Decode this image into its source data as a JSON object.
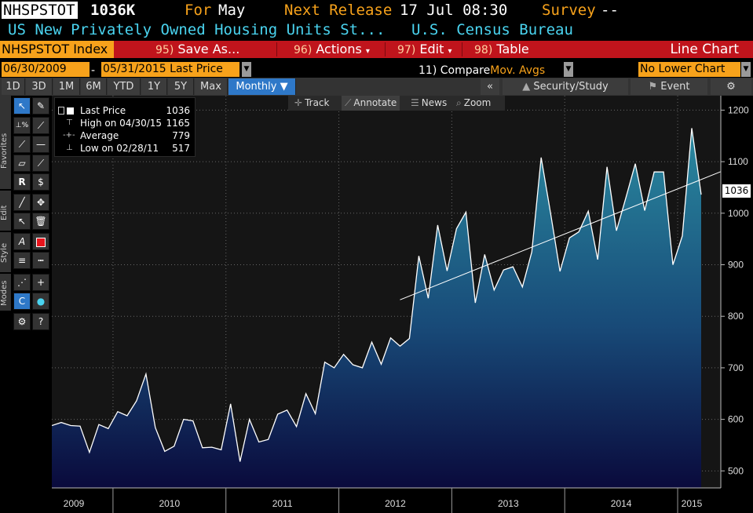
{
  "header": {
    "ticker": "NHSPSTOT",
    "price": "1036K",
    "for_label": "For",
    "for_value": "May",
    "next_release_label": "Next Release",
    "next_release_value": "17 Jul 08:30",
    "survey_label": "Survey",
    "survey_value": "--",
    "description": "US New Privately Owned Housing Units St...",
    "source": "U.S. Census Bureau"
  },
  "menubar": {
    "index_label": "NHSPSTOT Index",
    "save_num": "95)",
    "save_label": "Save As...",
    "actions_num": "96)",
    "actions_label": "Actions",
    "edit_num": "97)",
    "edit_label": "Edit",
    "table_num": "98)",
    "table_label": "Table",
    "chart_type": "Line Chart"
  },
  "daterow": {
    "start_date": "06/30/2009",
    "dash": "-",
    "end_date": "05/31/2015",
    "price_field": "Last Price",
    "compare_num": "11)",
    "compare_label": "Compare",
    "compare_value": "Mov. Avgs",
    "lower_chart": "No Lower Chart"
  },
  "periods": {
    "items": [
      "1D",
      "3D",
      "1M",
      "6M",
      "YTD",
      "1Y",
      "5Y",
      "Max"
    ],
    "frequency": "Monthly",
    "collapse": "«",
    "security_study": "Security/Study",
    "event": "Event",
    "settings_icon": "gear-icon"
  },
  "toolbar_sections": {
    "favorites": "Favorites",
    "edit": "Edit",
    "style": "Style",
    "modes": "Modes"
  },
  "floating_toolbar": {
    "track": "Track",
    "annotate": "Annotate",
    "news": "News",
    "zoom": "Zoom"
  },
  "legend": {
    "last_label": "Last Price",
    "last_value": "1036",
    "high_label": "High on 04/30/15",
    "high_value": "1165",
    "avg_label": "Average",
    "avg_value": "779",
    "low_label": "Low on 02/28/11",
    "low_value": "517"
  },
  "colors": {
    "orange": "#f7a21b",
    "cyan": "#4ad4f0",
    "menu_red": "#c0141c",
    "active_blue": "#2e78c8",
    "area_top": "#2a8aa0",
    "area_bottom": "#0a0a3c"
  },
  "chart_data": {
    "type": "area",
    "series": [
      {
        "name": "Last Price",
        "values": [
          588,
          594,
          588,
          587,
          536,
          590,
          582,
          615,
          607,
          636,
          688,
          584,
          538,
          548,
          600,
          597,
          545,
          546,
          541,
          630,
          518,
          600,
          556,
          561,
          610,
          618,
          586,
          650,
          611,
          711,
          700,
          726,
          706,
          700,
          750,
          707,
          758,
          742,
          757,
          917,
          835,
          977,
          888,
          970,
          1002,
          826,
          920,
          851,
          890,
          896,
          857,
          925,
          1108,
          1000,
          887,
          952,
          964,
          1004,
          910,
          1090,
          966,
          1030,
          1096,
          1005,
          1080,
          1080,
          900,
          956,
          1165,
          1036
        ]
      }
    ],
    "x_start": "2009-06",
    "x_end": "2015-05",
    "frequency": "monthly",
    "x_tick_labels": [
      "2009",
      "2010",
      "2011",
      "2012",
      "2013",
      "2014",
      "2015"
    ],
    "y_tick_labels": [
      "500",
      "600",
      "700",
      "800",
      "900",
      "1000",
      "1100",
      "1200"
    ],
    "ylim": [
      467,
      1228
    ],
    "trendline": {
      "from": {
        "date": "2012-07",
        "value": 832
      },
      "to": {
        "date": "2015-05",
        "value": 1080
      }
    },
    "last_value_label": "1036",
    "grid": true
  }
}
